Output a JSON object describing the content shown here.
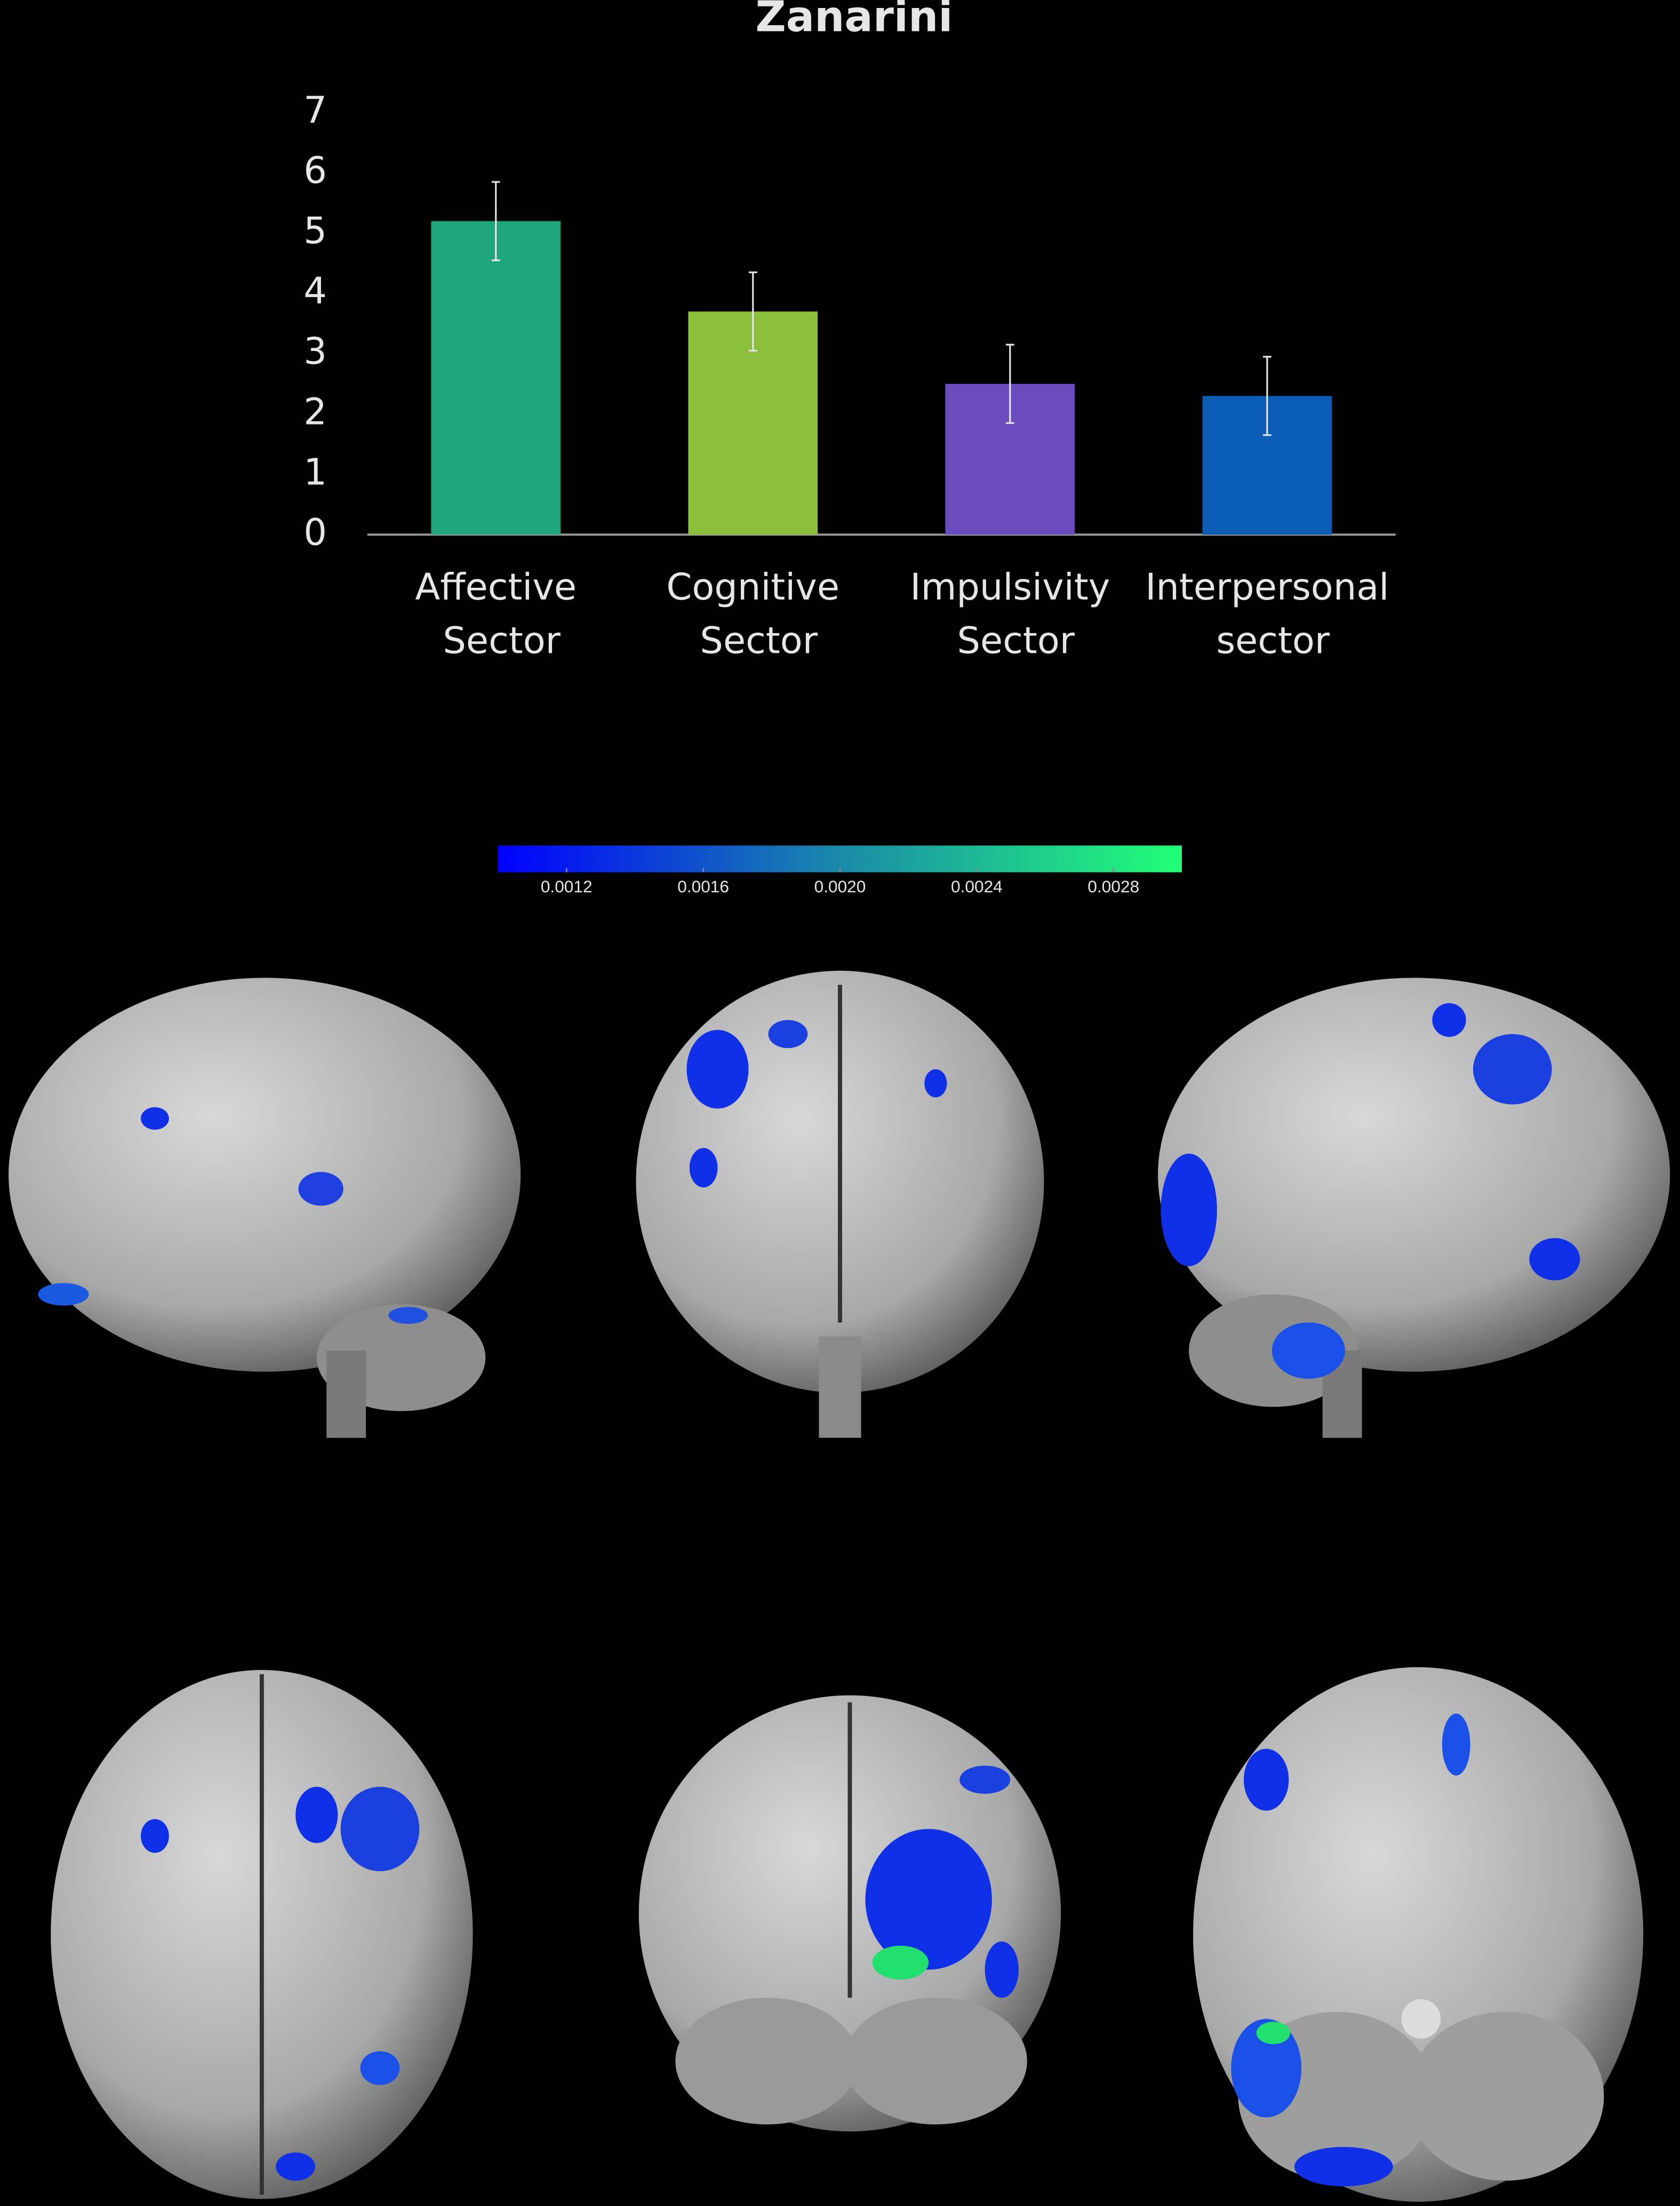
{
  "chart_data": {
    "type": "bar",
    "title": "Zanarini",
    "categories": [
      "Affective Sector",
      "Cognitive Sector",
      "Impulsivity Sector",
      "Interpersonal sector"
    ],
    "values": [
      5.2,
      3.7,
      2.5,
      2.3
    ],
    "errors": [
      0.65,
      0.65,
      0.65,
      0.65
    ],
    "colors": [
      "#1fa57c",
      "#8cc03c",
      "#6a4cbf",
      "#0b5cb4"
    ],
    "ylim": [
      0,
      7
    ],
    "yticks": [
      0,
      1,
      2,
      3,
      4,
      5,
      6,
      7
    ],
    "grid": false
  },
  "colorbar": {
    "range": [
      0.001,
      0.003
    ],
    "colors": [
      "#0000ff",
      "#1a8aa8",
      "#22ff77"
    ],
    "ticks": [
      0.0012,
      0.0016,
      {
        "value": 0.002,
        "label": "0.0020"
      },
      0.0024,
      0.0028
    ]
  }
}
